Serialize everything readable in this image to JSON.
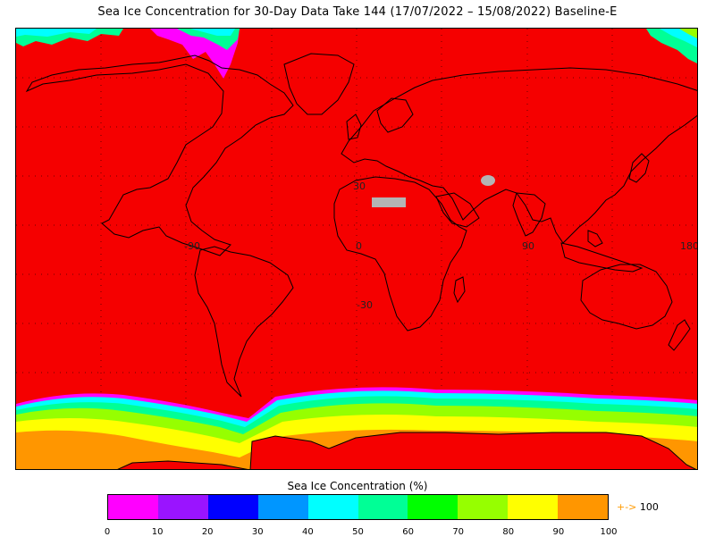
{
  "title": "Sea Ice Concentration for 30-Day Data Take 144 (17/07/2022 – 15/08/2022) Baseline-E",
  "map": {
    "lat_labels": [
      "30",
      "-30"
    ],
    "lon_labels": [
      "-90",
      "0",
      "90",
      "180"
    ],
    "colors": {
      "open_water": "#f50000",
      "land_outline": "#000000",
      "no_data": "#b4b4b4"
    }
  },
  "colorbar": {
    "title": "Sea Ice Concentration (%)",
    "colors": [
      "#ff00ff",
      "#9a14ff",
      "#0000ff",
      "#0096ff",
      "#00ffff",
      "#00ff96",
      "#00ff00",
      "#96ff00",
      "#ffff00",
      "#ff9600"
    ],
    "ticks": [
      "0",
      "10",
      "20",
      "30",
      "40",
      "50",
      "60",
      "70",
      "80",
      "90",
      "100"
    ],
    "overflow_arrow": "+->",
    "overflow_label": "100"
  }
}
